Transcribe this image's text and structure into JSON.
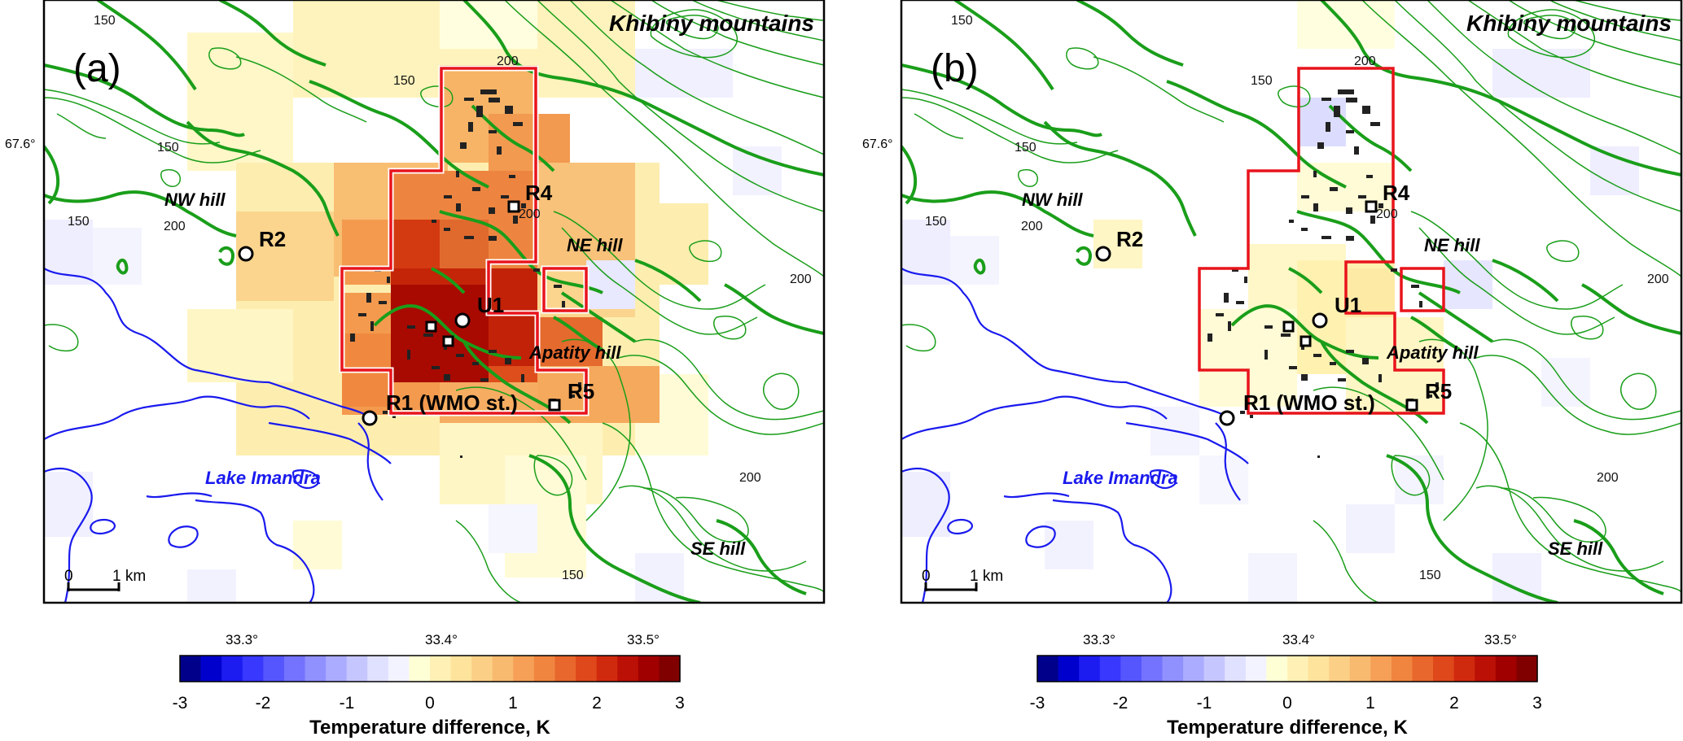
{
  "colorbar": {
    "ticks": [
      "-3",
      "-2",
      "-1",
      "0",
      "1",
      "2",
      "3"
    ],
    "label": "Temperature difference, K",
    "colors": [
      "#00008b",
      "#0000cd",
      "#1c1cf0",
      "#3838ff",
      "#5656ff",
      "#7373ff",
      "#9090ff",
      "#abacff",
      "#c6c6ff",
      "#e0e0ff",
      "#f3f3ff",
      "#ffffd6",
      "#fff1b5",
      "#fde39c",
      "#fbd086",
      "#f8ba6e",
      "#f5a056",
      "#f08540",
      "#e8672c",
      "#de481b",
      "#d02a0e",
      "#bb1006",
      "#a00000",
      "#800000"
    ]
  },
  "panels": [
    {
      "id": "a",
      "label": "(a)",
      "region_title": "Khibiny mountains",
      "lat_label": "67.6°",
      "lon_labels": [
        "33.3°",
        "33.4°",
        "33.5°"
      ],
      "scale_bar": {
        "start": "0",
        "end": "1 km"
      },
      "places": {
        "nw_hill": "NW hill",
        "ne_hill": "NE hill",
        "apatity_hill": "Apatity hill",
        "se_hill": "SE hill",
        "lake": "Lake Imandra"
      },
      "stations": {
        "r1": "R1 (WMO st.)",
        "r2": "R2",
        "r4": "R4",
        "r5": "R5",
        "u1": "U1"
      },
      "contour_labels": [
        "150",
        "150",
        "150",
        "200",
        "150",
        "200",
        "200",
        "200",
        "150",
        "200"
      ]
    },
    {
      "id": "b",
      "label": "(b)",
      "region_title": "Khibiny mountains",
      "lat_label": "67.6°",
      "lon_labels": [
        "33.3°",
        "33.4°",
        "33.5°"
      ],
      "scale_bar": {
        "start": "0",
        "end": "1 km"
      },
      "places": {
        "nw_hill": "NW hill",
        "ne_hill": "NE hill",
        "apatity_hill": "Apatity hill",
        "se_hill": "SE hill",
        "lake": "Lake Imandra"
      },
      "stations": {
        "r1": "R1 (WMO st.)",
        "r2": "R2",
        "r4": "R4",
        "r5": "R5",
        "u1": "U1"
      },
      "contour_labels": [
        "150",
        "150",
        "150",
        "200",
        "150",
        "200",
        "200",
        "200",
        "150",
        "200"
      ]
    }
  ]
}
